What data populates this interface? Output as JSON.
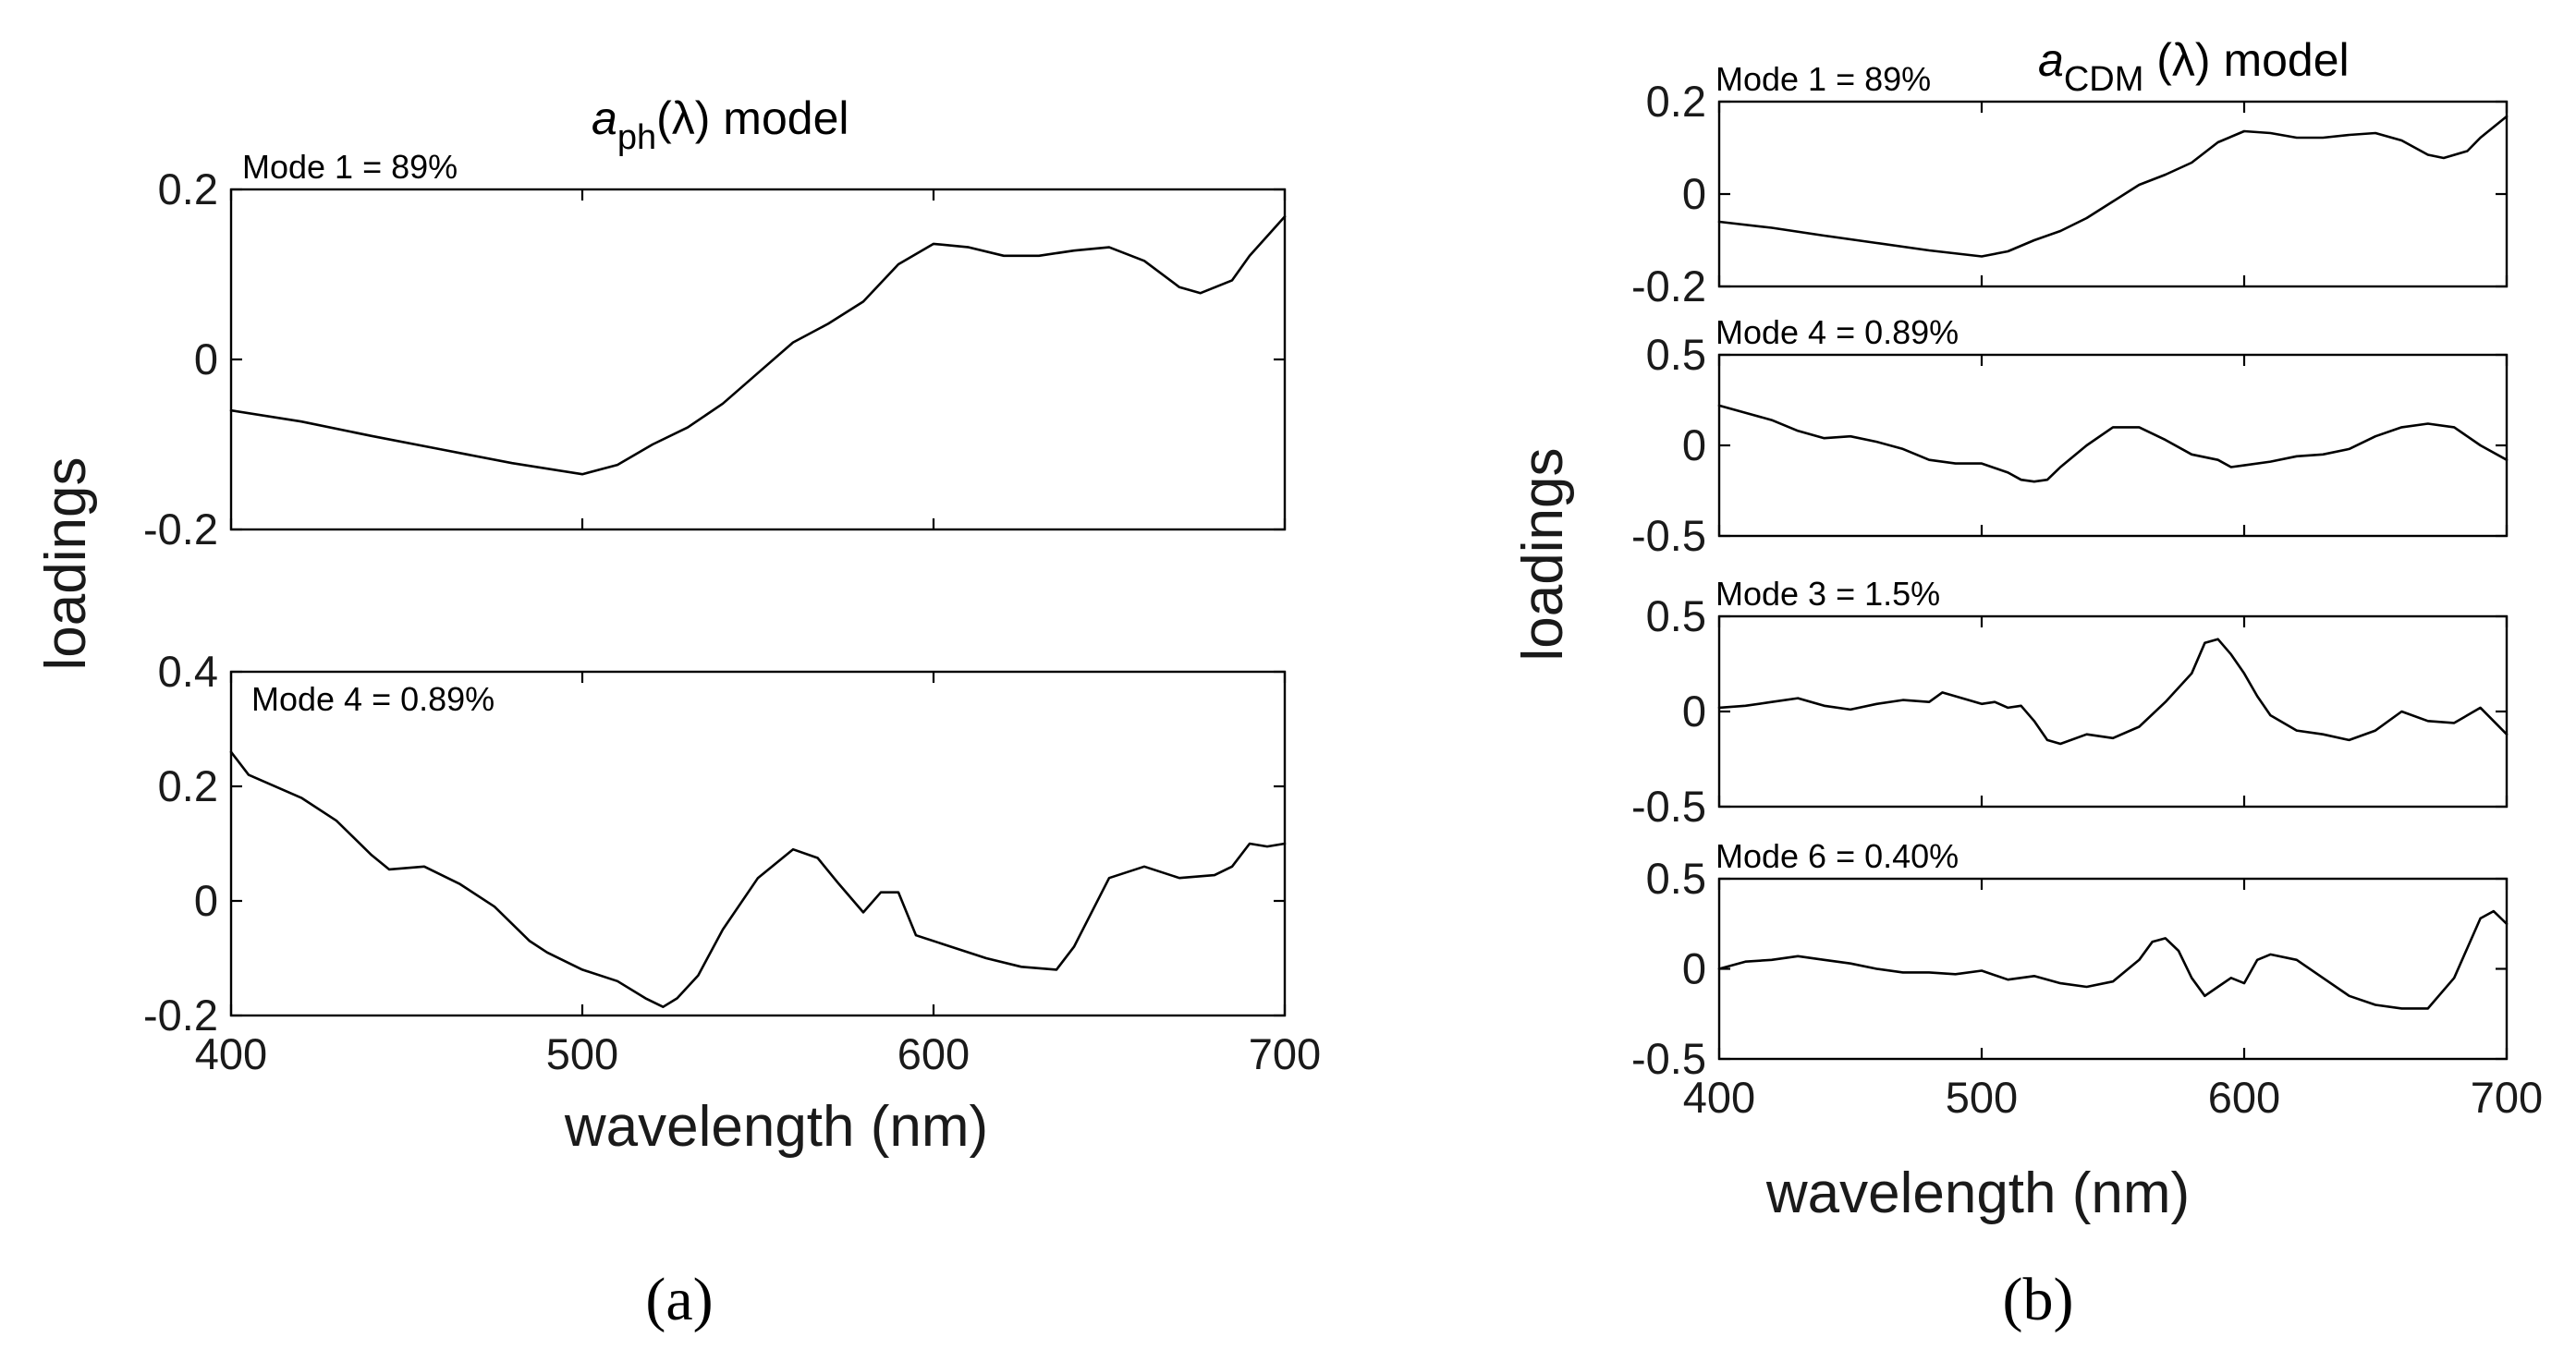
{
  "figure_labels": {
    "a": "(a)",
    "b": "(b)"
  },
  "panel_a": {
    "title": {
      "sym": "a",
      "sub": "ph",
      "paren": "(λ)",
      "rest": " model"
    },
    "ylabel": "loadings",
    "xlabel": "wavelength (nm)",
    "x_ticks": [
      "400",
      "500",
      "600",
      "700"
    ]
  },
  "panel_b": {
    "title": {
      "sym": "a",
      "sub": "CDM",
      "paren": " (λ)",
      "rest": " model"
    },
    "ylabel": "loadings",
    "xlabel": "wavelength (nm)",
    "x_ticks": [
      "400",
      "500",
      "600",
      "700"
    ]
  },
  "chart_data": [
    {
      "panel": "a",
      "type": "line",
      "mode_label": "Mode 1 = 89%",
      "xlim": [
        400,
        700
      ],
      "ylim": [
        -0.2,
        0.2
      ],
      "y_ticks": [
        0.2,
        0,
        -0.2
      ],
      "y_tick_labels": [
        "0.2",
        "0",
        "-0.2"
      ],
      "x": [
        400,
        420,
        440,
        460,
        480,
        500,
        510,
        520,
        530,
        540,
        550,
        560,
        570,
        580,
        590,
        600,
        610,
        620,
        630,
        640,
        650,
        660,
        670,
        676,
        685,
        690,
        700
      ],
      "y": [
        -0.06,
        -0.073,
        -0.09,
        -0.106,
        -0.122,
        -0.135,
        -0.124,
        -0.1,
        -0.08,
        -0.052,
        -0.016,
        0.02,
        0.042,
        0.068,
        0.112,
        0.136,
        0.132,
        0.122,
        0.122,
        0.128,
        0.132,
        0.116,
        0.085,
        0.078,
        0.093,
        0.122,
        0.168
      ]
    },
    {
      "panel": "a",
      "type": "line",
      "mode_label": "Mode 4 = 0.89%",
      "xlim": [
        400,
        700
      ],
      "ylim": [
        -0.2,
        0.4
      ],
      "y_ticks": [
        0.4,
        0.2,
        0,
        -0.2
      ],
      "y_tick_labels": [
        "0.4",
        "0.2",
        "0",
        "-0.2"
      ],
      "x": [
        400,
        405,
        420,
        430,
        440,
        445,
        455,
        465,
        475,
        485,
        490,
        500,
        510,
        518,
        523,
        527,
        533,
        540,
        550,
        560,
        567,
        573,
        580,
        585,
        590,
        595,
        605,
        615,
        625,
        635,
        640,
        650,
        660,
        670,
        680,
        685,
        690,
        695,
        700
      ],
      "y": [
        0.26,
        0.22,
        0.18,
        0.14,
        0.08,
        0.055,
        0.06,
        0.03,
        -0.01,
        -0.07,
        -0.09,
        -0.12,
        -0.14,
        -0.17,
        -0.185,
        -0.17,
        -0.13,
        -0.05,
        0.04,
        0.09,
        0.075,
        0.03,
        -0.02,
        0.015,
        0.015,
        -0.06,
        -0.08,
        -0.1,
        -0.115,
        -0.12,
        -0.08,
        0.04,
        0.06,
        0.04,
        0.045,
        0.06,
        0.1,
        0.095,
        0.1
      ]
    },
    {
      "panel": "b",
      "type": "line",
      "mode_label": "Mode 1 = 89%",
      "xlim": [
        400,
        700
      ],
      "ylim": [
        -0.2,
        0.2
      ],
      "y_ticks": [
        0.2,
        0,
        -0.2
      ],
      "y_tick_labels": [
        "0.2",
        "0",
        "-0.2"
      ],
      "x": [
        400,
        420,
        440,
        460,
        480,
        500,
        510,
        520,
        530,
        540,
        550,
        560,
        570,
        580,
        590,
        600,
        610,
        620,
        630,
        640,
        650,
        660,
        670,
        676,
        685,
        690,
        700
      ],
      "y": [
        -0.06,
        -0.073,
        -0.09,
        -0.106,
        -0.122,
        -0.135,
        -0.124,
        -0.1,
        -0.08,
        -0.052,
        -0.016,
        0.02,
        0.042,
        0.068,
        0.112,
        0.136,
        0.132,
        0.122,
        0.122,
        0.128,
        0.132,
        0.116,
        0.085,
        0.078,
        0.093,
        0.122,
        0.168
      ]
    },
    {
      "panel": "b",
      "type": "line",
      "mode_label": "Mode 4 = 0.89%",
      "xlim": [
        400,
        700
      ],
      "ylim": [
        -0.5,
        0.5
      ],
      "y_ticks": [
        0.5,
        0,
        -0.5
      ],
      "y_tick_labels": [
        "0.5",
        "0",
        "-0.5"
      ],
      "x": [
        400,
        410,
        420,
        430,
        440,
        450,
        460,
        470,
        480,
        490,
        500,
        510,
        515,
        520,
        525,
        530,
        540,
        550,
        560,
        570,
        580,
        590,
        595,
        600,
        610,
        620,
        630,
        640,
        650,
        660,
        670,
        680,
        690,
        700
      ],
      "y": [
        0.22,
        0.18,
        0.14,
        0.08,
        0.04,
        0.05,
        0.02,
        -0.02,
        -0.08,
        -0.1,
        -0.1,
        -0.15,
        -0.19,
        -0.2,
        -0.19,
        -0.12,
        0.0,
        0.1,
        0.1,
        0.03,
        -0.05,
        -0.08,
        -0.12,
        -0.11,
        -0.09,
        -0.06,
        -0.05,
        -0.02,
        0.05,
        0.1,
        0.12,
        0.1,
        0.0,
        -0.08
      ]
    },
    {
      "panel": "b",
      "type": "line",
      "mode_label": "Mode 3 = 1.5%",
      "xlim": [
        400,
        700
      ],
      "ylim": [
        -0.5,
        0.5
      ],
      "y_ticks": [
        0.5,
        0,
        -0.5
      ],
      "y_tick_labels": [
        "0.5",
        "0",
        "-0.5"
      ],
      "x": [
        400,
        410,
        420,
        430,
        440,
        450,
        460,
        470,
        480,
        485,
        490,
        495,
        500,
        505,
        510,
        515,
        520,
        525,
        530,
        540,
        550,
        560,
        570,
        580,
        585,
        590,
        595,
        600,
        605,
        610,
        620,
        630,
        640,
        650,
        660,
        670,
        680,
        690,
        700
      ],
      "y": [
        0.02,
        0.03,
        0.05,
        0.07,
        0.03,
        0.01,
        0.04,
        0.06,
        0.05,
        0.1,
        0.08,
        0.06,
        0.04,
        0.05,
        0.02,
        0.03,
        -0.05,
        -0.15,
        -0.17,
        -0.12,
        -0.14,
        -0.08,
        0.05,
        0.2,
        0.36,
        0.38,
        0.3,
        0.2,
        0.08,
        -0.02,
        -0.1,
        -0.12,
        -0.15,
        -0.1,
        0.0,
        -0.05,
        -0.06,
        0.02,
        -0.12
      ]
    },
    {
      "panel": "b",
      "type": "line",
      "mode_label": "Mode 6 = 0.40%",
      "xlim": [
        400,
        700
      ],
      "ylim": [
        -0.5,
        0.5
      ],
      "y_ticks": [
        0.5,
        0,
        -0.5
      ],
      "y_tick_labels": [
        "0.5",
        "0",
        "-0.5"
      ],
      "x": [
        400,
        410,
        420,
        430,
        440,
        450,
        460,
        470,
        480,
        490,
        500,
        510,
        520,
        530,
        540,
        550,
        560,
        565,
        570,
        575,
        580,
        585,
        590,
        595,
        600,
        605,
        610,
        620,
        630,
        640,
        650,
        660,
        670,
        680,
        690,
        695,
        700
      ],
      "y": [
        0.0,
        0.04,
        0.05,
        0.07,
        0.05,
        0.03,
        0.0,
        -0.02,
        -0.02,
        -0.03,
        -0.01,
        -0.06,
        -0.04,
        -0.08,
        -0.1,
        -0.07,
        0.05,
        0.15,
        0.17,
        0.1,
        -0.05,
        -0.15,
        -0.1,
        -0.05,
        -0.08,
        0.05,
        0.08,
        0.05,
        -0.05,
        -0.15,
        -0.2,
        -0.22,
        -0.22,
        -0.05,
        0.28,
        0.32,
        0.25
      ]
    }
  ]
}
